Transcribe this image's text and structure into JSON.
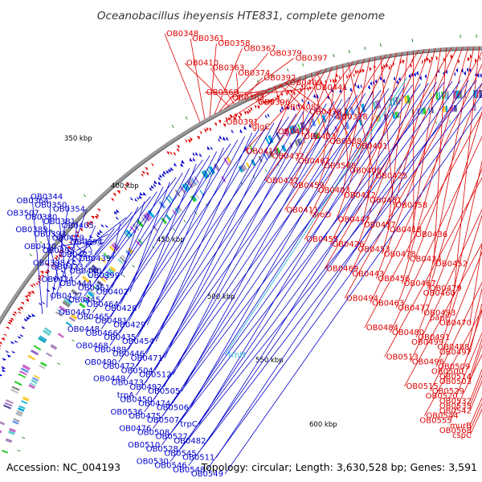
{
  "title": "Oceanobacillus iheyensis HTE831, complete genome",
  "footer": {
    "accession": "Accession: NC_004193",
    "info": "Topology: circular; Length: 3,630,528 bp; Genes: 3,591"
  },
  "colors": {
    "forward": "#dd0000",
    "reverse": "#0000cc",
    "rna": "#33bbdd",
    "backbone": "#999999"
  },
  "scale": [
    {
      "text": "350 kbp"
    },
    {
      "text": "400 kbp"
    },
    {
      "text": "450 kbp"
    },
    {
      "text": "500 kbp"
    },
    {
      "text": "550 kbp"
    },
    {
      "text": "600 kbp"
    }
  ],
  "forward_labels": [
    "OB0348",
    "OB0361",
    "OB0358",
    "OB0367",
    "OB0379",
    "OB0397",
    "OB0410",
    "OB0363",
    "OB0374",
    "OB0392",
    "OB0409",
    "OB0441",
    "OB0369",
    "OB0383",
    "OB0396",
    "OB0408",
    "OB0438",
    "OB0378",
    "OB0391",
    "glgC",
    "OB0415",
    "OB0433",
    "OB0388",
    "OB0401",
    "OB0413",
    "OB0432",
    "OB0462",
    "OB3508",
    "OB0406",
    "OB0425",
    "OB0437",
    "OB0459",
    "OB0403",
    "OB0412",
    "OB0431",
    "OB0458",
    "OB0411",
    "aroD",
    "OB0442",
    "OB0457",
    "OB0418",
    "OB0436",
    "OB0455",
    "OB0426",
    "OB0453",
    "OB0478",
    "OB0434",
    "OB0452",
    "OB0469",
    "OB0443",
    "OB0456",
    "OB0467",
    "OB0479",
    "OB0460",
    "OB0494",
    "OB0463",
    "OB0477",
    "OB0493",
    "panF",
    "OB0470",
    "OB0484",
    "OB0480",
    "OB0491",
    "OB0499",
    "OB0488",
    "OB0497",
    "OB0513",
    "OB0496",
    "OB0509",
    "OB0500",
    "OB0514",
    "OB0503",
    "OB0515",
    "OB0529",
    "OB0520",
    "OB0532",
    "OB0535",
    "OB0542",
    "OB0544",
    "OB0555",
    "murB",
    "OB0568",
    "cspC"
  ],
  "reverse_labels": [
    "OB0344",
    "OB0364",
    "OB0350",
    "OB0354",
    "OB3507",
    "OB0380",
    "OB0381",
    "OB0405",
    "OB0389",
    "OB0393",
    "OB0419",
    "OB0394",
    "OB0420",
    "OB0395",
    "OB0422",
    "OB0439",
    "OB0398",
    "OB0423",
    "OB0440",
    "OB0399",
    "OB0424",
    "OB0444",
    "OB0461",
    "OB0402",
    "OB0427",
    "OB0445",
    "OB0464",
    "OB0428",
    "OB0447",
    "OB0465",
    "OB0481",
    "OB0429",
    "OB0448",
    "OB0466",
    "OB0435",
    "OB0454",
    "OB0468",
    "OB0489",
    "OB0446",
    "OB0471",
    "OB0490",
    "OB0472",
    "OB0504",
    "OB0512",
    "OB0449",
    "OB0473",
    "OB0492",
    "OB0505",
    "trpA",
    "OB0450",
    "OB0474",
    "OB0506",
    "OB0536",
    "OB0475",
    "OB0507",
    "trpC",
    "OB0476",
    "OB0508",
    "OB0527",
    "OB0482",
    "OB0510",
    "OB0528",
    "OB0545",
    "OB0511",
    "OB0530",
    "OB0546",
    "OB0548",
    "OB0549"
  ],
  "rna_labels": [
    "trnH"
  ]
}
